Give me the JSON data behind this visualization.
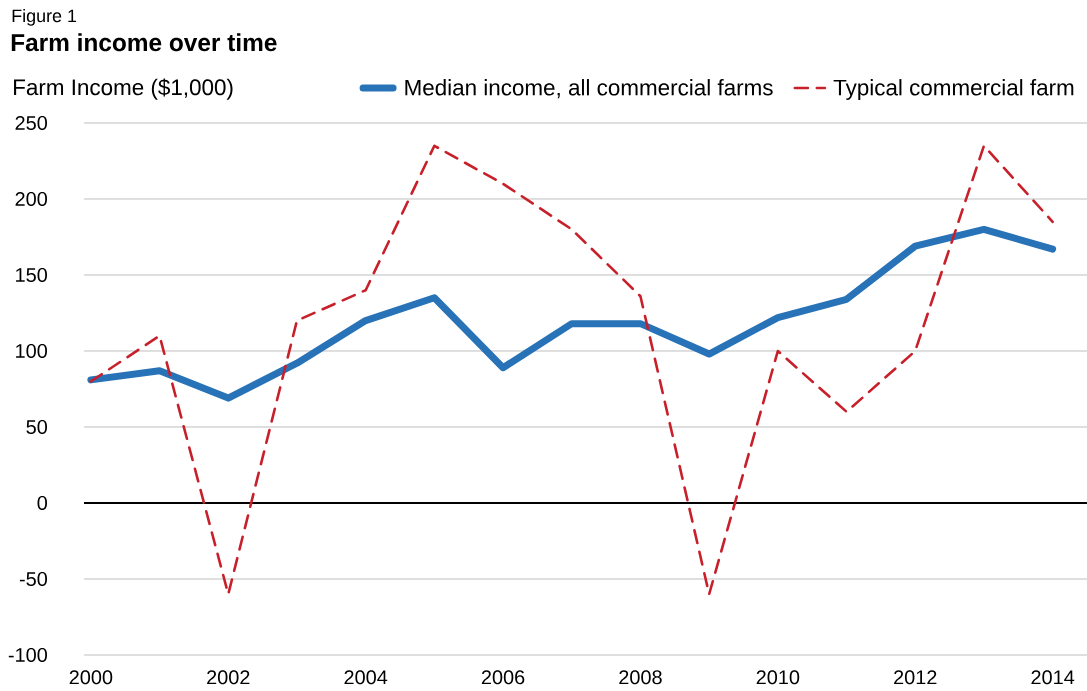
{
  "chart_data": {
    "type": "line",
    "title": "Farm income over time",
    "ylabel": "Farm Income ($1,000)",
    "annotations": [
      "Figure 1"
    ],
    "x": [
      2000,
      2001,
      2002,
      2003,
      2004,
      2005,
      2006,
      2007,
      2008,
      2009,
      2010,
      2011,
      2012,
      2013,
      2014
    ],
    "series": [
      {
        "name": "Median income, all commercial farms",
        "color": "#2872b7",
        "line_style": "solid",
        "values": [
          81,
          87,
          69,
          92,
          120,
          135,
          89,
          118,
          118,
          98,
          122,
          134,
          169,
          180,
          167
        ]
      },
      {
        "name": "Typical commercial farm",
        "color": "#c8202a",
        "line_style": "dashed",
        "values": [
          80,
          110,
          -60,
          120,
          140,
          235,
          210,
          180,
          136,
          -60,
          100,
          60,
          100,
          235,
          185
        ]
      }
    ],
    "xlim": [
      1999.9,
      2014.5
    ],
    "ylim": [
      -100,
      250
    ],
    "xticks": [
      2000,
      2002,
      2004,
      2006,
      2008,
      2010,
      2012,
      2014
    ],
    "yticks": [
      -100,
      -50,
      0,
      50,
      100,
      150,
      200,
      250
    ],
    "grid": "y",
    "legend": "top right",
    "ref_lines": [
      {
        "axis": "y",
        "value": 0,
        "color": "#000000"
      }
    ]
  }
}
